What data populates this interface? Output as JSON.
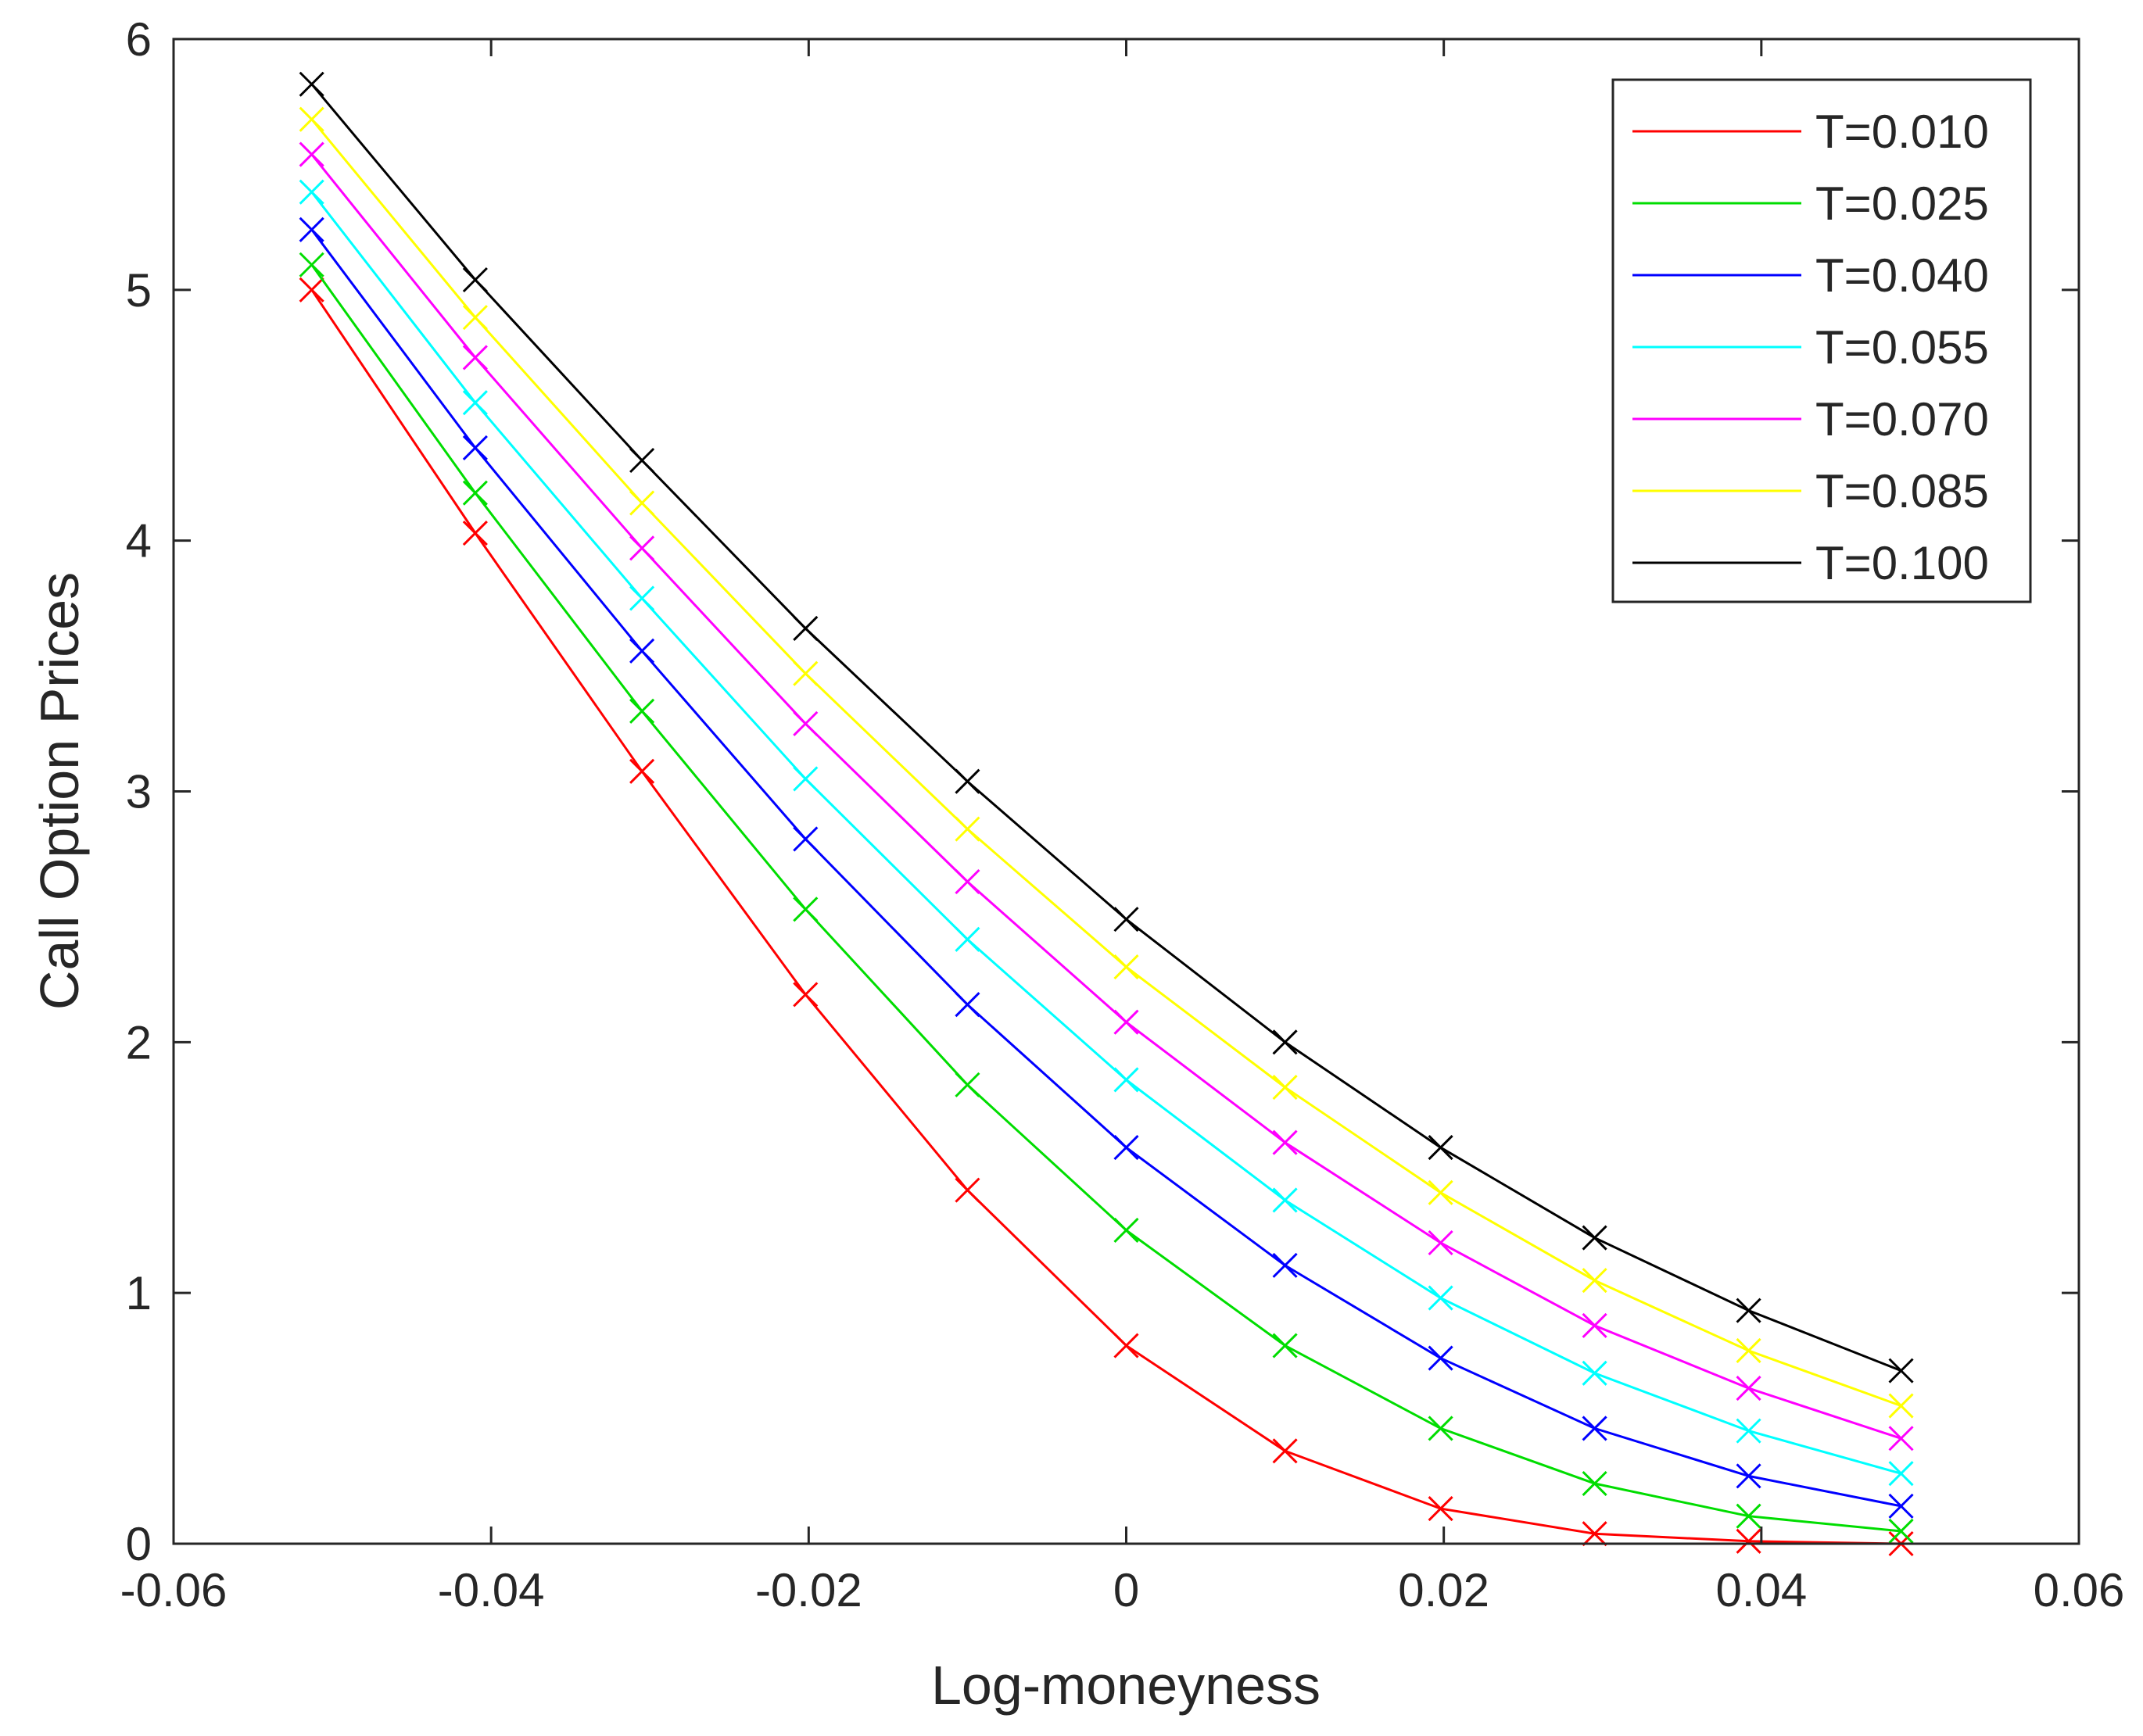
{
  "chart_data": {
    "type": "line",
    "title": "",
    "xlabel": "Log-moneyness",
    "ylabel": "Call Option Prices",
    "xlim": [
      -0.06,
      0.06
    ],
    "ylim": [
      0,
      6
    ],
    "xticks": [
      -0.06,
      -0.04,
      -0.02,
      0,
      0.02,
      0.04,
      0.06
    ],
    "xtick_labels": [
      "-0.06",
      "-0.04",
      "-0.02",
      "0",
      "0.02",
      "0.04",
      "0.06"
    ],
    "yticks": [
      0,
      1,
      2,
      3,
      4,
      5,
      6
    ],
    "ytick_labels": [
      "0",
      "1",
      "2",
      "3",
      "4",
      "5",
      "6"
    ],
    "grid": false,
    "legend_position": "top-right",
    "marker": "x",
    "x": [
      -0.0513,
      -0.041,
      -0.0305,
      -0.0202,
      -0.01,
      0.0,
      0.01,
      0.0198,
      0.0295,
      0.0392,
      0.0488
    ],
    "series": [
      {
        "name": "T=0.010",
        "color": "#ff0000",
        "values": [
          5.0,
          4.03,
          3.08,
          2.19,
          1.41,
          0.79,
          0.37,
          0.14,
          0.04,
          0.01,
          0.0
        ]
      },
      {
        "name": "T=0.025",
        "color": "#00dd00",
        "values": [
          5.1,
          4.19,
          3.32,
          2.53,
          1.83,
          1.25,
          0.79,
          0.46,
          0.24,
          0.11,
          0.05
        ]
      },
      {
        "name": "T=0.040",
        "color": "#0000ff",
        "values": [
          5.24,
          4.37,
          3.56,
          2.81,
          2.15,
          1.58,
          1.11,
          0.74,
          0.46,
          0.27,
          0.15
        ]
      },
      {
        "name": "T=0.055",
        "color": "#00ffff",
        "values": [
          5.39,
          4.55,
          3.77,
          3.05,
          2.41,
          1.85,
          1.37,
          0.98,
          0.68,
          0.45,
          0.28
        ]
      },
      {
        "name": "T=0.070",
        "color": "#ff00ff",
        "values": [
          5.54,
          4.73,
          3.97,
          3.27,
          2.64,
          2.08,
          1.6,
          1.2,
          0.87,
          0.62,
          0.42
        ]
      },
      {
        "name": "T=0.085",
        "color": "#ffff00",
        "values": [
          5.68,
          4.89,
          4.15,
          3.47,
          2.85,
          2.3,
          1.82,
          1.4,
          1.05,
          0.77,
          0.55
        ]
      },
      {
        "name": "T=0.100",
        "color": "#000000",
        "values": [
          5.82,
          5.04,
          4.32,
          3.65,
          3.04,
          2.49,
          2.0,
          1.58,
          1.22,
          0.93,
          0.69
        ]
      }
    ]
  }
}
